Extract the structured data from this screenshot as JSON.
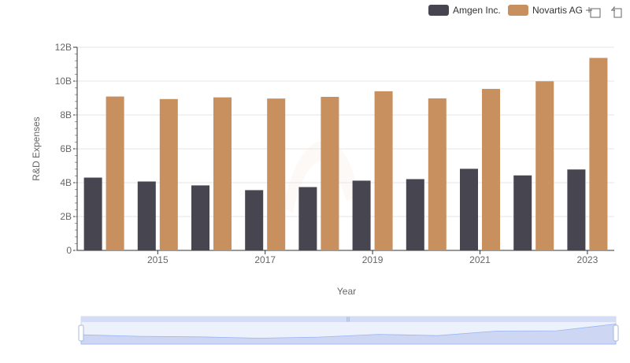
{
  "chart_data": {
    "type": "bar",
    "categories": [
      "2014",
      "2015",
      "2016",
      "2017",
      "2018",
      "2019",
      "2020",
      "2021",
      "2022",
      "2023"
    ],
    "x_tick_labels": [
      "2015",
      "2017",
      "2019",
      "2021",
      "2023"
    ],
    "series": [
      {
        "name": "Amgen Inc.",
        "color": "#474650",
        "values": [
          4.3,
          4.07,
          3.84,
          3.56,
          3.74,
          4.12,
          4.21,
          4.82,
          4.43,
          4.78
        ]
      },
      {
        "name": "Novartis AG",
        "color": "#c8905e",
        "values": [
          9.09,
          8.94,
          9.04,
          8.97,
          9.07,
          9.4,
          8.98,
          9.54,
          9.99,
          11.37
        ]
      }
    ],
    "xlabel": "Year",
    "ylabel": "R&D Expenses",
    "ylim": [
      0,
      12
    ],
    "y_ticks": [
      {
        "value": 0,
        "label": "0"
      },
      {
        "value": 2,
        "label": "2B"
      },
      {
        "value": 4,
        "label": "4B"
      },
      {
        "value": 6,
        "label": "6B"
      },
      {
        "value": 8,
        "label": "8B"
      },
      {
        "value": 10,
        "label": "10B"
      },
      {
        "value": 12,
        "label": "12B"
      }
    ],
    "grid": true,
    "legend_position": "top-right",
    "toolbox_icons": [
      "zoom-icon",
      "zoom-reset-icon"
    ],
    "datazoom": {
      "range_start": 0,
      "range_end": 100
    }
  }
}
